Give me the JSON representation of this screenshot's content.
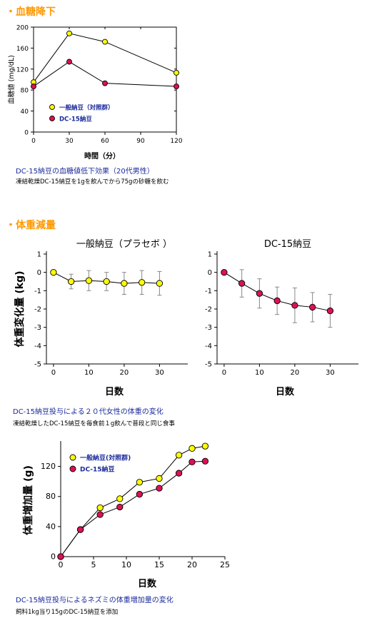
{
  "sections": {
    "glucose": {
      "heading": "・血糖降下",
      "caption_title": "DC-15納豆の血糖値低下効果（20代男性）",
      "caption_note": "凍結乾燥DC-15納豆を1gを飲んでから75gの砂糖を飲む"
    },
    "weight": {
      "heading": "・体重減量",
      "caption_title": "DC-15納豆投与による２０代女性の体重の変化",
      "caption_note": "凍結乾燥したDC-15納豆を毎食前１g飲んで普段と同じ食事"
    },
    "rat": {
      "caption_title": "DC-15納豆投与によるネズミの体重増加量の変化",
      "caption_note": "飼料1kg当り15gのDC-15納豆を添加"
    }
  },
  "colors": {
    "yellow": "#ffff00",
    "red": "#dd1155",
    "heading": "#ff9900",
    "caption": "#1a2a9a"
  },
  "chart_data": [
    {
      "type": "line",
      "id": "glucose",
      "xlabel": "時間（分）",
      "ylabel": "血糖値 (mg/dL)",
      "xlim": [
        0,
        120
      ],
      "ylim": [
        0,
        200
      ],
      "xticks": [
        0,
        30,
        60,
        90,
        120
      ],
      "yticks": [
        0,
        40,
        80,
        120,
        160,
        200
      ],
      "legend": "bottom-left",
      "series": [
        {
          "name": "一般納豆（対照群）",
          "color": "yellow",
          "x": [
            0,
            30,
            60,
            120
          ],
          "y": [
            95,
            188,
            172,
            113
          ]
        },
        {
          "name": "DC-15納豆",
          "color": "red",
          "x": [
            0,
            30,
            60,
            120
          ],
          "y": [
            87,
            134,
            93,
            87
          ]
        }
      ]
    },
    {
      "type": "line",
      "id": "weight_general",
      "title": "一般納豆（プラセボ ）",
      "xlabel": "日数",
      "ylabel": "体重変化量 (kg)",
      "xlim": [
        -2,
        38
      ],
      "ylim": [
        -5,
        1
      ],
      "xticks": [
        0,
        10,
        20,
        30
      ],
      "yticks": [
        1,
        0,
        -1,
        -2,
        -3,
        -4,
        -5
      ],
      "series": [
        {
          "color": "yellow",
          "x": [
            0,
            5,
            10,
            15,
            20,
            25,
            30
          ],
          "y": [
            0,
            -0.5,
            -0.45,
            -0.5,
            -0.6,
            -0.55,
            -0.6
          ],
          "err": [
            0,
            0.4,
            0.55,
            0.5,
            0.6,
            0.65,
            0.65
          ]
        }
      ]
    },
    {
      "type": "line",
      "id": "weight_dc15",
      "title": "DC-15納豆",
      "xlabel": "日数",
      "ylim": [
        -5,
        1
      ],
      "xlim": [
        -2,
        38
      ],
      "xticks": [
        0,
        10,
        20,
        30
      ],
      "yticks": [
        1,
        0,
        -1,
        -2,
        -3,
        -4,
        -5
      ],
      "series": [
        {
          "color": "red",
          "x": [
            0,
            5,
            10,
            15,
            20,
            25,
            30
          ],
          "y": [
            0,
            -0.6,
            -1.15,
            -1.55,
            -1.8,
            -1.9,
            -2.1
          ],
          "err": [
            0,
            0.75,
            0.8,
            0.75,
            0.95,
            0.8,
            0.9
          ]
        }
      ]
    },
    {
      "type": "line",
      "id": "rat",
      "xlabel": "日数",
      "ylabel": "体重増加量 (g)",
      "xlim": [
        0,
        25
      ],
      "ylim": [
        0,
        150
      ],
      "xticks": [
        0,
        5,
        10,
        15,
        20,
        25
      ],
      "yticks": [
        0,
        40,
        80,
        120
      ],
      "legend": "top-left",
      "series": [
        {
          "name": "一般納豆(対照群)",
          "color": "yellow",
          "x": [
            0,
            3,
            6,
            9,
            12,
            15,
            18,
            20,
            22
          ],
          "y": [
            0,
            36,
            65,
            77,
            99,
            104,
            135,
            144,
            147
          ]
        },
        {
          "name": "DC-15納豆",
          "color": "red",
          "x": [
            0,
            3,
            6,
            9,
            12,
            15,
            18,
            20,
            22
          ],
          "y": [
            0,
            36,
            56,
            66,
            83,
            91,
            111,
            126,
            127
          ]
        }
      ]
    }
  ]
}
